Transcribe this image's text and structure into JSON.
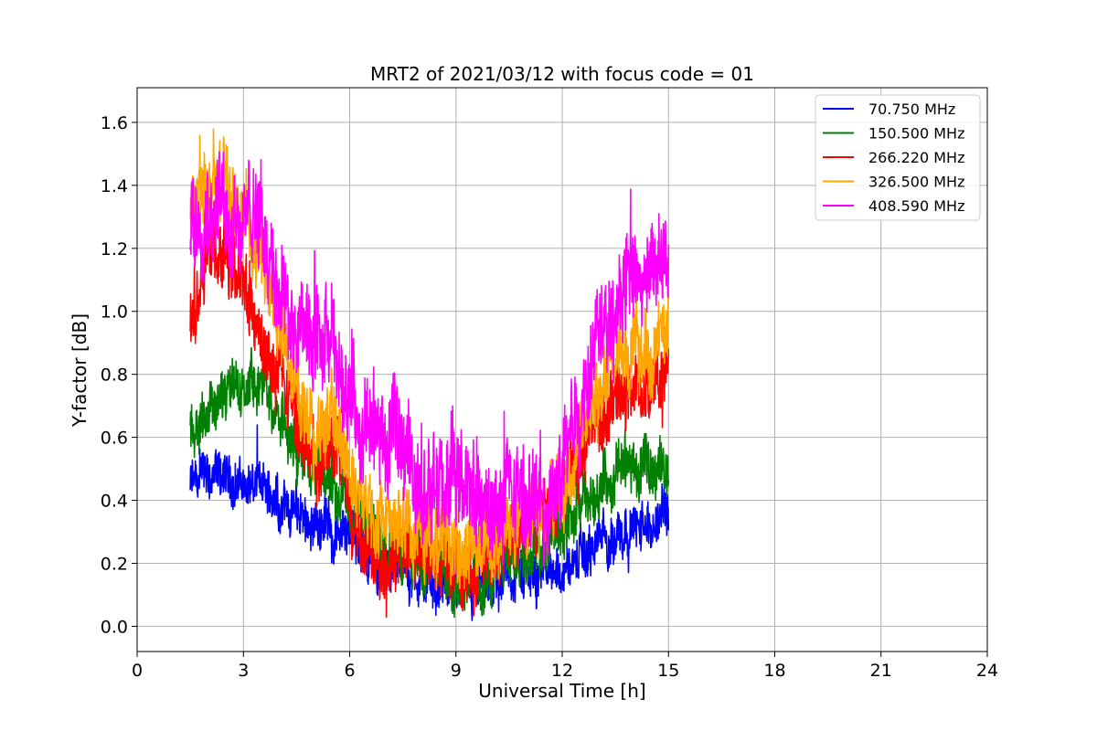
{
  "chart_data": {
    "type": "line",
    "title": "MRT2 of 2021/03/12 with focus code = 01",
    "xlabel": "Universal Time [h]",
    "ylabel": "Y-factor [dB]",
    "xlim": [
      0,
      24
    ],
    "ylim": [
      -0.08,
      1.71
    ],
    "xticks": [
      0,
      3,
      6,
      9,
      12,
      15,
      18,
      21,
      24
    ],
    "yticks": [
      0.0,
      0.2,
      0.4,
      0.6,
      0.8,
      1.0,
      1.2,
      1.4,
      1.6
    ],
    "ytick_labels": [
      "0.0",
      "0.2",
      "0.4",
      "0.6",
      "0.8",
      "1.0",
      "1.2",
      "1.4",
      "1.6"
    ],
    "grid": true,
    "legend_position": "top-right",
    "series": [
      {
        "name": " 70.750 MHz",
        "color": "#0000ff",
        "x": [
          1.5,
          2.0,
          2.5,
          3.0,
          3.5,
          4.0,
          4.5,
          5.0,
          5.5,
          6.0,
          6.5,
          7.0,
          7.5,
          8.0,
          8.5,
          9.0,
          9.5,
          10.0,
          10.5,
          11.0,
          11.5,
          12.0,
          12.5,
          13.0,
          13.5,
          14.0,
          14.5,
          15.0
        ],
        "y": [
          0.45,
          0.46,
          0.47,
          0.45,
          0.44,
          0.4,
          0.36,
          0.33,
          0.32,
          0.27,
          0.22,
          0.2,
          0.18,
          0.14,
          0.12,
          0.11,
          0.1,
          0.12,
          0.16,
          0.18,
          0.17,
          0.18,
          0.21,
          0.26,
          0.3,
          0.32,
          0.3,
          0.38
        ],
        "spread": 0.08
      },
      {
        "name": "150.500 MHz",
        "color": "#008000",
        "x": [
          1.5,
          2.0,
          2.5,
          3.0,
          3.5,
          4.0,
          4.5,
          5.0,
          5.5,
          6.0,
          6.5,
          7.0,
          7.5,
          8.0,
          8.5,
          9.0,
          9.5,
          10.0,
          10.5,
          11.0,
          11.5,
          12.0,
          12.5,
          13.0,
          13.5,
          14.0,
          14.5,
          15.0
        ],
        "y": [
          0.62,
          0.7,
          0.74,
          0.75,
          0.76,
          0.68,
          0.56,
          0.5,
          0.47,
          0.38,
          0.3,
          0.27,
          0.24,
          0.21,
          0.19,
          0.16,
          0.14,
          0.16,
          0.22,
          0.24,
          0.25,
          0.28,
          0.36,
          0.44,
          0.49,
          0.5,
          0.48,
          0.52
        ],
        "spread": 0.09
      },
      {
        "name": "266.220 MHz",
        "color": "#ff0000",
        "x": [
          1.5,
          2.0,
          2.5,
          3.0,
          3.5,
          4.0,
          4.5,
          5.0,
          5.5,
          6.0,
          6.5,
          7.0,
          7.5,
          8.0,
          8.5,
          9.0,
          9.5,
          10.0,
          10.5,
          11.0,
          11.5,
          12.0,
          12.5,
          13.0,
          13.5,
          14.0,
          14.5,
          15.0
        ],
        "y": [
          0.95,
          1.18,
          1.15,
          1.08,
          0.9,
          0.78,
          0.66,
          0.5,
          0.58,
          0.4,
          0.26,
          0.22,
          0.24,
          0.22,
          0.2,
          0.2,
          0.18,
          0.22,
          0.3,
          0.34,
          0.36,
          0.4,
          0.56,
          0.66,
          0.72,
          0.76,
          0.74,
          0.8
        ],
        "spread": 0.11
      },
      {
        "name": "326.500 MHz",
        "color": "#ffa500",
        "x": [
          1.5,
          2.0,
          2.5,
          3.0,
          3.5,
          4.0,
          4.5,
          5.0,
          5.5,
          6.0,
          6.5,
          7.0,
          7.5,
          8.0,
          8.5,
          9.0,
          9.5,
          10.0,
          10.5,
          11.0,
          11.5,
          12.0,
          12.5,
          13.0,
          13.5,
          14.0,
          14.5,
          15.0
        ],
        "y": [
          1.3,
          1.42,
          1.4,
          1.3,
          1.15,
          0.95,
          0.78,
          0.62,
          0.68,
          0.5,
          0.4,
          0.36,
          0.34,
          0.3,
          0.26,
          0.26,
          0.24,
          0.26,
          0.32,
          0.36,
          0.38,
          0.42,
          0.62,
          0.76,
          0.84,
          0.88,
          0.86,
          0.92
        ],
        "spread": 0.12
      },
      {
        "name": "408.590 MHz",
        "color": "#ff00ff",
        "x": [
          1.5,
          2.0,
          2.5,
          3.0,
          3.5,
          4.0,
          4.5,
          5.0,
          5.5,
          6.0,
          6.5,
          7.0,
          7.5,
          8.0,
          8.5,
          9.0,
          9.5,
          10.0,
          10.5,
          11.0,
          11.5,
          12.0,
          12.5,
          13.0,
          13.5,
          14.0,
          14.5,
          15.0
        ],
        "y": [
          1.3,
          1.34,
          1.32,
          1.3,
          1.28,
          1.1,
          0.92,
          0.88,
          0.86,
          0.76,
          0.6,
          0.58,
          0.58,
          0.44,
          0.4,
          0.46,
          0.4,
          0.36,
          0.4,
          0.4,
          0.38,
          0.46,
          0.72,
          0.98,
          1.06,
          1.1,
          1.1,
          1.2
        ],
        "spread": 0.16
      }
    ]
  }
}
